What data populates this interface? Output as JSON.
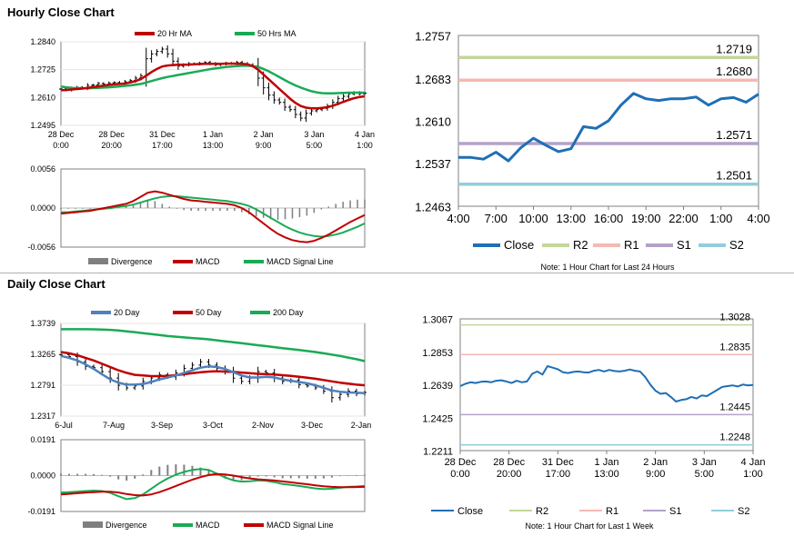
{
  "sections": {
    "hourly_title": "Hourly Close Chart",
    "daily_title": "Daily Close Chart"
  },
  "colors": {
    "close_black": "#000000",
    "ma_red": "#c00000",
    "ma_green": "#1aaa55",
    "ma_blue": "#4f81bd",
    "divergence": "#7f7f7f",
    "close_blue": "#1f6fb4",
    "r2": "#c3d69b",
    "r1": "#f4b9b4",
    "s1": "#b3a2c7",
    "s2": "#92cddc"
  },
  "chart_data": [
    {
      "id": "hourly_price",
      "type": "line",
      "title": "Hourly Close Chart",
      "y_ticks": [
        "1.2840",
        "1.2725",
        "1.2610",
        "1.2495"
      ],
      "ylim": [
        1.2495,
        1.284
      ],
      "x_ticks": [
        [
          "28 Dec",
          "0:00"
        ],
        [
          "28 Dec",
          "20:00"
        ],
        [
          "31 Dec",
          "17:00"
        ],
        [
          "1 Jan",
          "13:00"
        ],
        [
          "2 Jan",
          "9:00"
        ],
        [
          "3 Jan",
          "5:00"
        ],
        [
          "4 Jan",
          "1:00"
        ]
      ],
      "legend": [
        "20 Hr MA",
        "50 Hrs MA"
      ],
      "series": [
        {
          "name": "Close",
          "values": [
            1.2645,
            1.2642,
            1.2648,
            1.2652,
            1.265,
            1.266,
            1.2662,
            1.2668,
            1.2665,
            1.267,
            1.2672,
            1.2668,
            1.2675,
            1.268,
            1.269,
            1.27,
            1.277,
            1.279,
            1.28,
            1.281,
            1.279,
            1.276,
            1.274,
            1.2745,
            1.275,
            1.2748,
            1.2752,
            1.2755,
            1.275,
            1.2745,
            1.2748,
            1.2752,
            1.275,
            1.2755,
            1.275,
            1.2745,
            1.274,
            1.269,
            1.265,
            1.262,
            1.26,
            1.259,
            1.257,
            1.256,
            1.254,
            1.2525,
            1.2545,
            1.2555,
            1.256,
            1.2565,
            1.2575,
            1.259,
            1.2605,
            1.2615,
            1.2625,
            1.263,
            1.2625,
            1.2628
          ]
        },
        {
          "name": "20 Hr MA",
          "values": [
            1.264,
            1.2641,
            1.2643,
            1.2645,
            1.2647,
            1.265,
            1.2653,
            1.2656,
            1.2659,
            1.2662,
            1.2664,
            1.2666,
            1.2668,
            1.2672,
            1.2678,
            1.2686,
            1.27,
            1.2715,
            1.2728,
            1.2738,
            1.2742,
            1.2744,
            1.2745,
            1.2745,
            1.2746,
            1.2747,
            1.2748,
            1.2749,
            1.2749,
            1.2749,
            1.2749,
            1.275,
            1.275,
            1.275,
            1.2749,
            1.2747,
            1.274,
            1.2725,
            1.2705,
            1.2685,
            1.2665,
            1.2645,
            1.2625,
            1.2605,
            1.2588,
            1.2575,
            1.2568,
            1.2565,
            1.2565,
            1.2567,
            1.257,
            1.2576,
            1.2584,
            1.2592,
            1.26,
            1.2607,
            1.2612,
            1.2615
          ]
        },
        {
          "name": "50 Hrs MA",
          "values": [
            1.2655,
            1.2652,
            1.265,
            1.2649,
            1.2648,
            1.2648,
            1.2649,
            1.265,
            1.2651,
            1.2652,
            1.2654,
            1.2656,
            1.2658,
            1.266,
            1.2663,
            1.2666,
            1.2672,
            1.2678,
            1.2684,
            1.269,
            1.2695,
            1.2699,
            1.2703,
            1.2707,
            1.2711,
            1.2715,
            1.2719,
            1.2723,
            1.2727,
            1.273,
            1.2733,
            1.2736,
            1.2738,
            1.274,
            1.2741,
            1.2741,
            1.274,
            1.2736,
            1.2728,
            1.2718,
            1.2706,
            1.2694,
            1.2682,
            1.267,
            1.266,
            1.2651,
            1.2643,
            1.2636,
            1.2631,
            1.2628,
            1.2627,
            1.2627,
            1.2628,
            1.2629,
            1.263,
            1.263,
            1.263,
            1.263
          ]
        }
      ]
    },
    {
      "id": "hourly_macd",
      "type": "line",
      "y_ticks": [
        "0.0056",
        "0.0000",
        "-0.0056"
      ],
      "ylim": [
        -0.0056,
        0.0056
      ],
      "legend": [
        "Divergence",
        "MACD",
        "MACD Signal Line"
      ],
      "series": [
        {
          "name": "MACD",
          "values": [
            -0.0008,
            -0.0007,
            -0.0006,
            -0.0005,
            -0.0004,
            -0.0002,
            0.0,
            0.0002,
            0.0004,
            0.0006,
            0.001,
            0.0016,
            0.0022,
            0.0024,
            0.0022,
            0.0019,
            0.0016,
            0.0013,
            0.0011,
            0.001,
            0.0009,
            0.0008,
            0.0007,
            0.0006,
            0.0004,
            0.0,
            -0.0006,
            -0.0014,
            -0.0022,
            -0.003,
            -0.0037,
            -0.0042,
            -0.0046,
            -0.0048,
            -0.0049,
            -0.0047,
            -0.0043,
            -0.0038,
            -0.0032,
            -0.0026,
            -0.002,
            -0.0015,
            -0.001
          ]
        },
        {
          "name": "MACD Signal Line",
          "values": [
            -0.0006,
            -0.0006,
            -0.0005,
            -0.0004,
            -0.0003,
            -0.0002,
            -0.0001,
            0.0,
            0.0002,
            0.0003,
            0.0005,
            0.0008,
            0.0011,
            0.0014,
            0.0016,
            0.0017,
            0.0017,
            0.0016,
            0.0015,
            0.0014,
            0.0013,
            0.0012,
            0.0011,
            0.001,
            0.0008,
            0.0006,
            0.0003,
            -0.0002,
            -0.0008,
            -0.0014,
            -0.002,
            -0.0026,
            -0.0031,
            -0.0035,
            -0.0038,
            -0.004,
            -0.0041,
            -0.004,
            -0.0038,
            -0.0035,
            -0.0031,
            -0.0027,
            -0.0022
          ]
        }
      ]
    },
    {
      "id": "hourly_pivots",
      "type": "line",
      "y_ticks": [
        "1.2757",
        "1.2683",
        "1.2610",
        "1.2537",
        "1.2463"
      ],
      "ylim": [
        1.2463,
        1.2757
      ],
      "x_ticks": [
        "4:00",
        "7:00",
        "10:00",
        "13:00",
        "16:00",
        "19:00",
        "22:00",
        "1:00",
        "4:00"
      ],
      "levels": [
        {
          "name": "R2",
          "value": 1.2719,
          "label": "1.2719"
        },
        {
          "name": "R1",
          "value": 1.268,
          "label": "1.2680"
        },
        {
          "name": "S1",
          "value": 1.2571,
          "label": "1.2571"
        },
        {
          "name": "S2",
          "value": 1.2501,
          "label": "1.2501"
        }
      ],
      "series": [
        {
          "name": "Close",
          "values": [
            1.2547,
            1.2547,
            1.2544,
            1.2556,
            1.2541,
            1.2564,
            1.258,
            1.2568,
            1.2557,
            1.2562,
            1.26,
            1.2597,
            1.261,
            1.2637,
            1.2657,
            1.2648,
            1.2645,
            1.2648,
            1.2648,
            1.2651,
            1.2637,
            1.2648,
            1.265,
            1.2642,
            1.2656
          ]
        }
      ],
      "legend": [
        "Close",
        "R2",
        "R1",
        "S1",
        "S2"
      ],
      "note": "Note: 1 Hour Chart for Last 24 Hours"
    },
    {
      "id": "daily_price",
      "type": "line",
      "title": "Daily Close Chart",
      "y_ticks": [
        "1.3739",
        "1.3265",
        "1.2791",
        "1.2317"
      ],
      "ylim": [
        1.2317,
        1.3739
      ],
      "x_ticks": [
        "6-Jul",
        "7-Aug",
        "3-Sep",
        "3-Oct",
        "2-Nov",
        "3-Dec",
        "2-Jan"
      ],
      "legend": [
        "20 Day",
        "50 Day",
        "200 Day"
      ],
      "series": [
        {
          "name": "Close",
          "values": [
            1.326,
            1.323,
            1.315,
            1.308,
            1.306,
            1.3,
            1.29,
            1.279,
            1.275,
            1.278,
            1.285,
            1.29,
            1.295,
            1.292,
            1.298,
            1.305,
            1.31,
            1.315,
            1.31,
            1.305,
            1.3,
            1.29,
            1.285,
            1.29,
            1.3,
            1.298,
            1.29,
            1.285,
            1.287,
            1.28,
            1.278,
            1.275,
            1.27,
            1.26,
            1.265,
            1.27,
            1.266,
            1.268
          ]
        },
        {
          "name": "20 Day",
          "values": [
            1.324,
            1.321,
            1.317,
            1.311,
            1.304,
            1.296,
            1.288,
            1.283,
            1.28,
            1.28,
            1.281,
            1.284,
            1.288,
            1.291,
            1.294,
            1.298,
            1.302,
            1.306,
            1.308,
            1.307,
            1.304,
            1.299,
            1.294,
            1.291,
            1.291,
            1.292,
            1.291,
            1.288,
            1.286,
            1.284,
            1.282,
            1.279,
            1.275,
            1.271,
            1.269,
            1.268,
            1.2675,
            1.267
          ]
        },
        {
          "name": "50 Day",
          "values": [
            1.33,
            1.328,
            1.325,
            1.321,
            1.317,
            1.312,
            1.307,
            1.302,
            1.298,
            1.295,
            1.294,
            1.293,
            1.293,
            1.2935,
            1.2945,
            1.296,
            1.2975,
            1.299,
            1.3,
            1.3005,
            1.3,
            1.2995,
            1.2985,
            1.2975,
            1.2965,
            1.296,
            1.2955,
            1.2945,
            1.2935,
            1.292,
            1.2905,
            1.289,
            1.287,
            1.285,
            1.283,
            1.2815,
            1.28,
            1.279
          ]
        },
        {
          "name": "200 Day",
          "values": [
            1.365,
            1.365,
            1.365,
            1.365,
            1.3648,
            1.3645,
            1.364,
            1.363,
            1.3618,
            1.3605,
            1.359,
            1.3575,
            1.356,
            1.3545,
            1.3535,
            1.3525,
            1.3515,
            1.3505,
            1.3495,
            1.348,
            1.3465,
            1.345,
            1.3435,
            1.342,
            1.3405,
            1.339,
            1.3375,
            1.336,
            1.3345,
            1.333,
            1.3315,
            1.33,
            1.328,
            1.326,
            1.324,
            1.3215,
            1.319,
            1.316
          ]
        }
      ]
    },
    {
      "id": "daily_macd",
      "type": "line",
      "y_ticks": [
        "0.0191",
        "0.0000",
        "-0.0191"
      ],
      "ylim": [
        -0.0191,
        0.0191
      ],
      "legend": [
        "Divergence",
        "MACD",
        "MACD Signal Line"
      ],
      "series": [
        {
          "name": "MACD",
          "values": [
            -0.009,
            -0.0088,
            -0.0085,
            -0.0082,
            -0.008,
            -0.0082,
            -0.0092,
            -0.011,
            -0.0125,
            -0.012,
            -0.01,
            -0.007,
            -0.004,
            -0.0015,
            0.0005,
            0.002,
            0.003,
            0.0035,
            0.003,
            0.001,
            -0.001,
            -0.0025,
            -0.0032,
            -0.003,
            -0.0025,
            -0.0028,
            -0.0035,
            -0.0045,
            -0.005,
            -0.0055,
            -0.0062,
            -0.0068,
            -0.0072,
            -0.007,
            -0.0065,
            -0.006,
            -0.0058,
            -0.0055
          ]
        },
        {
          "name": "MACD Signal Line",
          "values": [
            -0.01,
            -0.0097,
            -0.0094,
            -0.0091,
            -0.0088,
            -0.0086,
            -0.0086,
            -0.009,
            -0.0098,
            -0.0104,
            -0.0106,
            -0.01,
            -0.0088,
            -0.0072,
            -0.0055,
            -0.0038,
            -0.0022,
            -0.0008,
            0.0003,
            0.0008,
            0.0006,
            0.0,
            -0.0008,
            -0.0015,
            -0.002,
            -0.0023,
            -0.0026,
            -0.0031,
            -0.0036,
            -0.0041,
            -0.0046,
            -0.0052,
            -0.0057,
            -0.006,
            -0.0062,
            -0.0062,
            -0.0061,
            -0.006
          ]
        }
      ]
    },
    {
      "id": "daily_pivots",
      "type": "line",
      "y_ticks": [
        "1.3067",
        "1.2853",
        "1.2639",
        "1.2425",
        "1.2211"
      ],
      "ylim": [
        1.2211,
        1.3067
      ],
      "x_ticks": [
        [
          "28 Dec",
          "0:00"
        ],
        [
          "28 Dec",
          "20:00"
        ],
        [
          "31 Dec",
          "17:00"
        ],
        [
          "1 Jan",
          "13:00"
        ],
        [
          "2 Jan",
          "9:00"
        ],
        [
          "3 Jan",
          "5:00"
        ],
        [
          "4 Jan",
          "1:00"
        ]
      ],
      "levels": [
        {
          "name": "R2",
          "value": 1.3028,
          "label": "1.3028"
        },
        {
          "name": "R1",
          "value": 1.2835,
          "label": "1.2835"
        },
        {
          "name": "S1",
          "value": 1.2445,
          "label": "1.2445"
        },
        {
          "name": "S2",
          "value": 1.2248,
          "label": "1.2248"
        }
      ],
      "series": [
        {
          "name": "Close",
          "values": [
            1.263,
            1.2645,
            1.2655,
            1.265,
            1.2658,
            1.266,
            1.2655,
            1.2665,
            1.2668,
            1.266,
            1.265,
            1.2665,
            1.2655,
            1.266,
            1.271,
            1.2725,
            1.2705,
            1.276,
            1.275,
            1.274,
            1.272,
            1.2715,
            1.2722,
            1.2725,
            1.272,
            1.2718,
            1.273,
            1.2735,
            1.2725,
            1.2735,
            1.2728,
            1.2725,
            1.273,
            1.2738,
            1.273,
            1.2725,
            1.269,
            1.264,
            1.26,
            1.258,
            1.2585,
            1.256,
            1.253,
            1.254,
            1.2545,
            1.256,
            1.255,
            1.257,
            1.2565,
            1.2585,
            1.2605,
            1.2625,
            1.263,
            1.2635,
            1.2628,
            1.264,
            1.2635,
            1.2638
          ]
        }
      ],
      "legend": [
        "Close",
        "R2",
        "R1",
        "S1",
        "S2"
      ],
      "note": "Note: 1 Hour Chart for Last 1 Week"
    }
  ]
}
